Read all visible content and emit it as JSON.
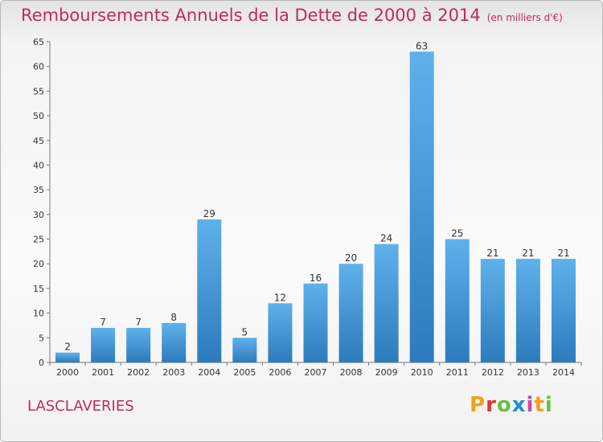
{
  "title": "Remboursements Annuels de la Dette de 2000 à 2014",
  "unit_note": "(en milliers d'€)",
  "commune": "LASCLAVERIES",
  "logo_text": "Proxiti",
  "colors": {
    "title": "#c22a5a",
    "bar_top": "#5fb1ea",
    "bar_bottom": "#2c7bbd",
    "logo": [
      "#f2a11b",
      "#e0342f",
      "#6cbe45",
      "#1e8fd8",
      "#c54aa6",
      "#f2a11b",
      "#6cbe45"
    ]
  },
  "chart_data": {
    "type": "bar",
    "categories": [
      "2000",
      "2001",
      "2002",
      "2003",
      "2004",
      "2005",
      "2006",
      "2007",
      "2008",
      "2009",
      "2010",
      "2011",
      "2012",
      "2013",
      "2014"
    ],
    "values": [
      2,
      7,
      7,
      8,
      29,
      5,
      12,
      16,
      20,
      24,
      63,
      25,
      21,
      21,
      21
    ],
    "ylim": [
      0,
      65
    ],
    "yticks": [
      0,
      5,
      10,
      15,
      20,
      25,
      30,
      35,
      40,
      45,
      50,
      55,
      60,
      65
    ],
    "grid": false,
    "data_labels": true
  }
}
